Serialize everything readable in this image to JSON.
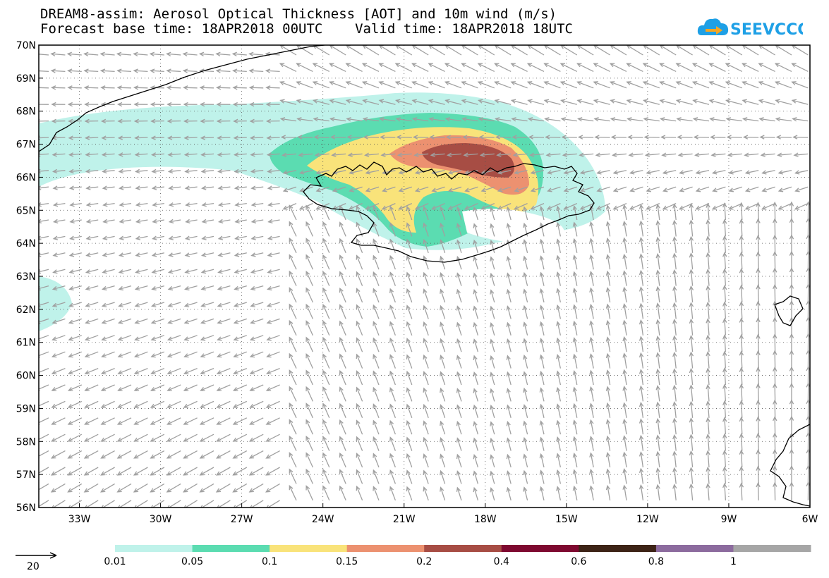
{
  "header": {
    "title_line1": "DREAM8-assim: Aerosol Optical Thickness [AOT] and 10m wind (m/s)",
    "title_line2": "Forecast base time: 18APR2018 00UTC    Valid time: 18APR2018 18UTC"
  },
  "logo": {
    "text": "SEEVCCC",
    "icon": "cloud-arrow-icon",
    "color": "#1ea0e6",
    "arrow_color": "#f5a623"
  },
  "map": {
    "lat_labels": [
      "70N",
      "69N",
      "68N",
      "67N",
      "66N",
      "65N",
      "64N",
      "63N",
      "62N",
      "61N",
      "60N",
      "59N",
      "58N",
      "57N",
      "56N"
    ],
    "lat_values": [
      70,
      69,
      68,
      67,
      66,
      65,
      64,
      63,
      62,
      61,
      60,
      59,
      58,
      57,
      56
    ],
    "lon_labels": [
      "33W",
      "30W",
      "27W",
      "24W",
      "21W",
      "18W",
      "15W",
      "12W",
      "9W",
      "6W"
    ],
    "lon_values": [
      -33,
      -30,
      -27,
      -24,
      -21,
      -18,
      -15,
      -12,
      -9,
      -6
    ],
    "lat_range": [
      56,
      70
    ],
    "lon_range": [
      -34.5,
      -6
    ],
    "grid": true,
    "wind_vector_color": "#a0a0a0",
    "coastline_color": "#000000"
  },
  "wind_reference": {
    "label": "20"
  },
  "legend": {
    "tick_labels": [
      "0.01",
      "0.05",
      "0.1",
      "0.15",
      "0.2",
      "0.4",
      "0.6",
      "0.8",
      "1"
    ],
    "colors": [
      "#bff2ea",
      "#5bdcb1",
      "#f9e37a",
      "#ec9170",
      "#a74d44",
      "#7e0930",
      "#3d2316",
      "#8c6b9e",
      "#a6a6a6"
    ]
  }
}
